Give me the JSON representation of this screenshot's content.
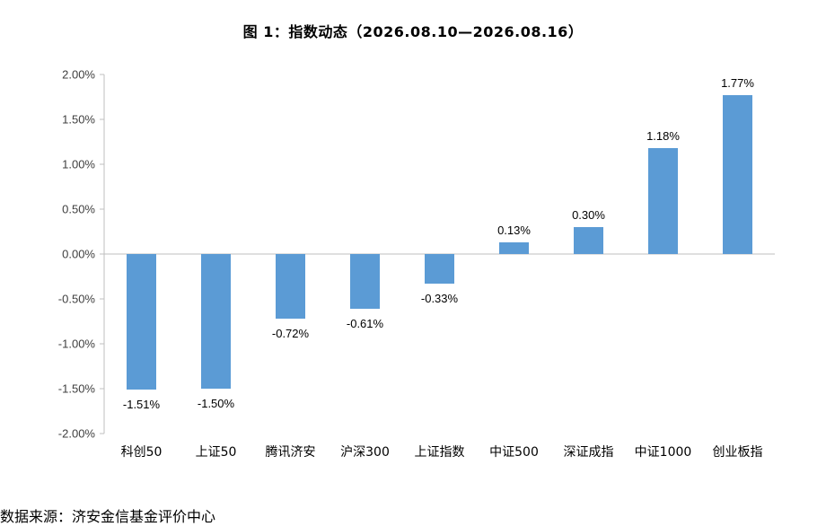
{
  "chart_title": "图 1：指数动态（2026.08.10—2026.08.16）",
  "source_label": "数据来源：济安金信基金评价中心",
  "colors": {
    "bar": "#5b9bd5",
    "axis": "#bfbfbf",
    "text": "#000000",
    "tick_text": "#404040"
  },
  "chart_data": {
    "type": "bar",
    "title": "图 1：指数动态（2026.08.10—2026.08.16）",
    "xlabel": "",
    "ylabel": "",
    "ylim": [
      -2.0,
      2.0
    ],
    "y_unit": "%",
    "grid": false,
    "legend": "none",
    "categories": [
      "科创50",
      "上证50",
      "腾讯济安",
      "沪深300",
      "上证指数",
      "中证500",
      "深证成指",
      "中证1000",
      "创业板指"
    ],
    "values": [
      -1.51,
      -1.5,
      -0.72,
      -0.61,
      -0.33,
      0.13,
      0.3,
      1.18,
      1.77
    ],
    "data_labels": [
      "-1.51%",
      "-1.50%",
      "-0.72%",
      "-0.61%",
      "-0.33%",
      "0.13%",
      "0.30%",
      "1.18%",
      "1.77%"
    ],
    "y_ticks": [
      2.0,
      1.5,
      1.0,
      0.5,
      0.0,
      -0.5,
      -1.0,
      -1.5,
      -2.0
    ],
    "y_tick_labels": [
      "2.00%",
      "1.50%",
      "1.00%",
      "0.50%",
      "0.00%",
      "-0.50%",
      "-1.00%",
      "-1.50%",
      "-2.00%"
    ]
  }
}
